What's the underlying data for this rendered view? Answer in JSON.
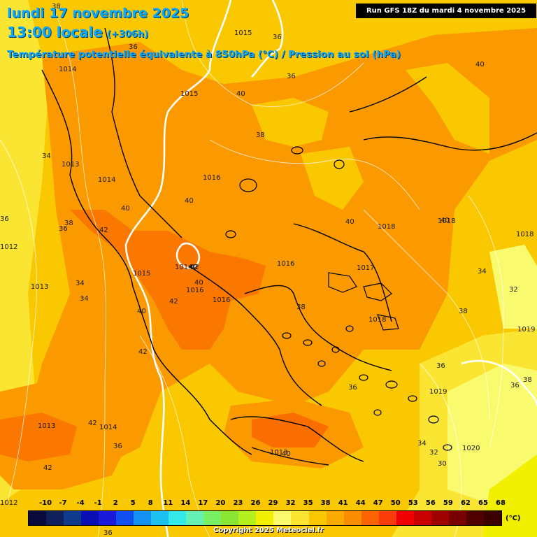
{
  "header": {
    "date": "lundi 17 novembre 2025",
    "hour": "13:00 locale",
    "lead": "(+306h)",
    "subtitle": "Température potentielle équivalente à 850hPa (°C) / Pression au sol (hPa)",
    "run": "Run GFS 18Z du mardi 4 novembre 2025"
  },
  "legend": {
    "unit": "(°C)",
    "ticks": [
      "-10",
      "-7",
      "-4",
      "-1",
      "2",
      "5",
      "8",
      "11",
      "14",
      "17",
      "20",
      "23",
      "26",
      "29",
      "32",
      "35",
      "38",
      "41",
      "44",
      "47",
      "50",
      "53",
      "56",
      "59",
      "62",
      "65",
      "68"
    ],
    "colors": [
      "#0a0a3c",
      "#10205a",
      "#103a8c",
      "#0a10b4",
      "#1a1ad8",
      "#1050f0",
      "#1490f0",
      "#1ec0f0",
      "#32e8e8",
      "#64f0b4",
      "#78f064",
      "#8ae632",
      "#b4f01e",
      "#f0f000",
      "#fafa6e",
      "#fae632",
      "#fac800",
      "#faaa00",
      "#fa8c00",
      "#fa6400",
      "#fa3c0a",
      "#f00000",
      "#c80000",
      "#a00000",
      "#780000",
      "#500000",
      "#3c0000"
    ]
  },
  "copyright": "Copyright 2025 Meteociel.fr",
  "map": {
    "isobar_labels": [
      "1015",
      "1014",
      "1013",
      "1014",
      "1015",
      "1016",
      "1014",
      "1016",
      "1015",
      "1016",
      "1016",
      "1017",
      "1018",
      "1018",
      "1018",
      "1018",
      "1019",
      "1019",
      "1020",
      "1013",
      "1014",
      "1013",
      "1013",
      "1012",
      "1012",
      "1014",
      "1016"
    ],
    "temperature_labels": [
      "38",
      "36",
      "36",
      "36",
      "40",
      "40",
      "38",
      "40",
      "40",
      "42",
      "42",
      "40",
      "40",
      "40",
      "40",
      "42",
      "42",
      "42",
      "40",
      "38",
      "38",
      "38",
      "36",
      "36",
      "36",
      "36",
      "34",
      "34",
      "34",
      "34",
      "32",
      "32",
      "30",
      "34",
      "38",
      "36",
      "40",
      "42",
      "42",
      "36",
      "36"
    ]
  }
}
